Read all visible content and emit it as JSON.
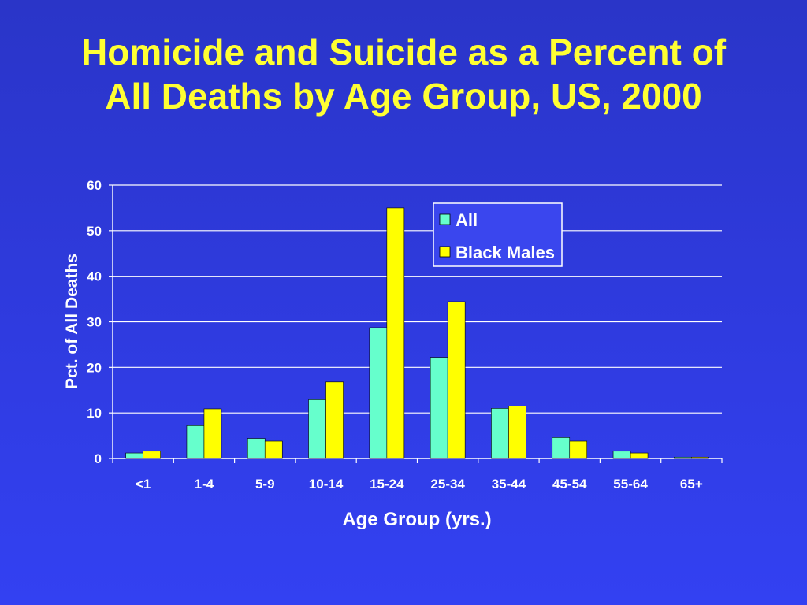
{
  "slide": {
    "title_line1": "Homicide and Suicide as a Percent of",
    "title_line2": "All Deaths by Age Group, US, 2000"
  },
  "chart_data": {
    "type": "bar",
    "title": "Homicide and Suicide as a Percent of All Deaths by Age Group, US, 2000",
    "xlabel": "Age Group (yrs.)",
    "ylabel": "Pct. of All Deaths",
    "categories": [
      "<1",
      "1-4",
      "5-9",
      "10-14",
      "15-24",
      "25-34",
      "35-44",
      "45-54",
      "55-64",
      "65+"
    ],
    "series": [
      {
        "name": "All",
        "color": "#66ffcc",
        "values": [
          1.2,
          7.2,
          4.4,
          12.9,
          28.7,
          22.2,
          11.0,
          4.6,
          1.6,
          0.3
        ]
      },
      {
        "name": "Black Males",
        "color": "#ffff00",
        "values": [
          1.6,
          10.9,
          3.8,
          16.8,
          55.0,
          34.4,
          11.5,
          3.8,
          1.2,
          0.3
        ]
      }
    ],
    "ylim": [
      0,
      60
    ],
    "yticks": [
      0,
      10,
      20,
      30,
      40,
      50,
      60
    ],
    "grid": true,
    "legend_position": "top-right"
  }
}
